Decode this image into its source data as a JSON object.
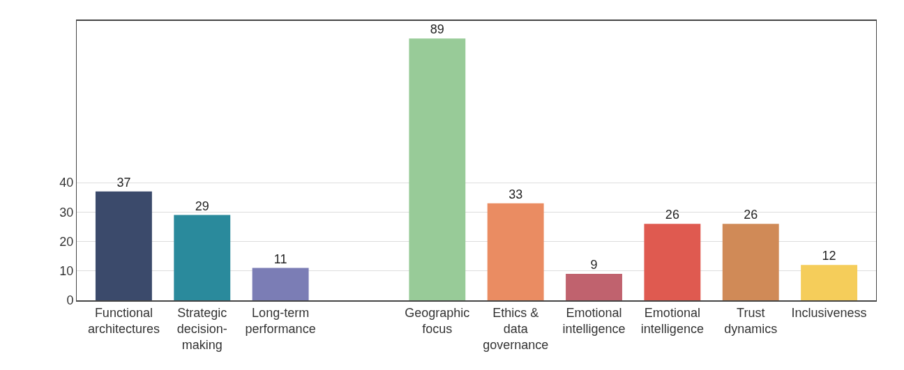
{
  "chart_data": {
    "type": "bar",
    "categories": [
      "Functional architectures",
      "Strategic decision-making",
      "Long-term performance",
      null,
      "Geographic focus",
      "Ethics & data governance",
      "Emotional intelligence",
      "Emotional intelligence",
      "Trust dynamics",
      "Inclusiveness"
    ],
    "values": [
      37,
      29,
      11,
      null,
      89,
      33,
      9,
      26,
      26,
      12
    ],
    "colors": [
      "#3b4a6b",
      "#2a8a9c",
      "#7b7db5",
      "#ffffff",
      "#98cb98",
      "#ea8c62",
      "#c0626e",
      "#df5a50",
      "#d08a57",
      "#f5cd5a"
    ],
    "data_labels": true,
    "ylim": [
      0,
      95
    ],
    "yticks": [
      0,
      10,
      20,
      30,
      40
    ],
    "grid": "y"
  }
}
